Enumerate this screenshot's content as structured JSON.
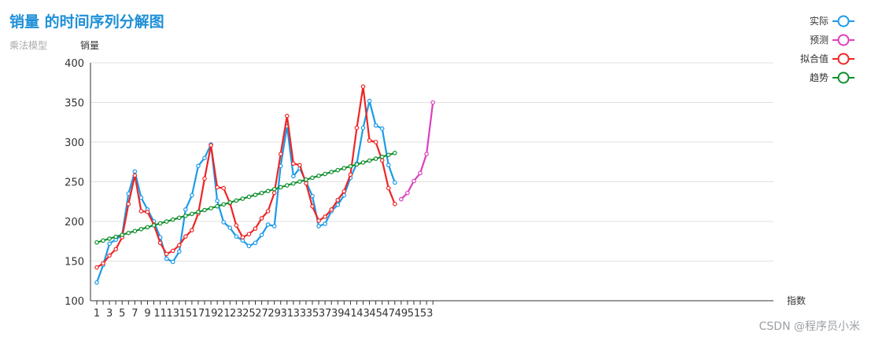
{
  "chart_data": {
    "type": "line",
    "title": "销量 的时间序列分解图",
    "subtitle": "乘法模型",
    "ylabel": "销量",
    "xlabel": "指数",
    "ylim": [
      100,
      400
    ],
    "yticks": [
      100,
      150,
      200,
      250,
      300,
      350,
      400
    ],
    "xlim": [
      1,
      54
    ],
    "xtick_labels": [
      "1",
      "3",
      "5",
      "7",
      "9",
      "11",
      "13",
      "15",
      "17",
      "19",
      "21",
      "23",
      "25",
      "27",
      "29",
      "31",
      "33",
      "35",
      "37",
      "39",
      "41",
      "43",
      "45",
      "47",
      "49",
      "51",
      "53"
    ],
    "series": [
      {
        "name": "实际",
        "color": "#1a9bea",
        "x_start": 1,
        "values": [
          123,
          145,
          172,
          177,
          183,
          235,
          263,
          230,
          215,
          200,
          180,
          153,
          149,
          162,
          215,
          233,
          270,
          280,
          297,
          226,
          199,
          192,
          181,
          176,
          169,
          173,
          183,
          196,
          194,
          270,
          320,
          257,
          267,
          250,
          232,
          194,
          197,
          213,
          221,
          233,
          255,
          273,
          318,
          352,
          321,
          317,
          271,
          249
        ]
      },
      {
        "name": "预测",
        "color": "#de3fbe",
        "x_start": 49,
        "values": [
          228,
          236,
          251,
          261,
          285,
          350
        ]
      },
      {
        "name": "拟合值",
        "color": "#ee2525",
        "x_start": 1,
        "values": [
          142,
          147,
          157,
          165,
          180,
          222,
          258,
          213,
          212,
          196,
          173,
          159,
          163,
          170,
          181,
          189,
          210,
          254,
          296,
          243,
          242,
          223,
          195,
          180,
          184,
          191,
          204,
          213,
          236,
          285,
          333,
          273,
          271,
          248,
          219,
          201,
          206,
          215,
          227,
          238,
          259,
          318,
          370,
          302,
          300,
          277,
          242,
          222
        ]
      },
      {
        "name": "趋势",
        "color": "#0e8f2c",
        "x_start": 1,
        "values": [
          173.5,
          175.9,
          178.3,
          180.7,
          183.1,
          185.5,
          187.9,
          190.3,
          192.7,
          195.1,
          197.5,
          199.9,
          202.3,
          204.7,
          207.1,
          209.5,
          211.9,
          214.3,
          216.7,
          219.1,
          221.5,
          223.9,
          226.3,
          228.7,
          231.1,
          233.5,
          235.9,
          238.3,
          240.7,
          243.1,
          245.5,
          247.9,
          250.3,
          252.7,
          255.1,
          257.5,
          259.9,
          262.3,
          264.7,
          267.1,
          269.5,
          271.9,
          274.3,
          276.7,
          279.1,
          281.5,
          283.9,
          286.3
        ]
      }
    ]
  },
  "watermark": "CSDN @程序员小米"
}
